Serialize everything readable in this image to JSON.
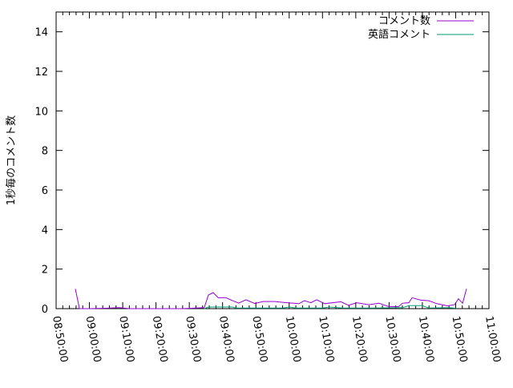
{
  "chart_data": {
    "type": "line",
    "title": "",
    "xlabel": "",
    "ylabel": "1秒毎のコメント数",
    "ylim": [
      0,
      15
    ],
    "yticks": [
      0,
      2,
      4,
      6,
      8,
      10,
      12,
      14
    ],
    "xlim": [
      "08:50:00",
      "11:00:00"
    ],
    "xticks": [
      "08:50:00",
      "09:00:00",
      "09:10:00",
      "09:20:00",
      "09:30:00",
      "09:40:00",
      "09:50:00",
      "10:00:00",
      "10:10:00",
      "10:20:00",
      "10:30:00",
      "10:40:00",
      "10:50:00",
      "11:00:00"
    ],
    "grid": false,
    "legend_position": "top-right",
    "series": [
      {
        "name": "コメント数",
        "color": "#9400d3",
        "points": [
          [
            "08:55:47",
            1.0
          ],
          [
            "08:57:00",
            0
          ],
          [
            "09:00:00",
            0
          ],
          [
            "09:05:00",
            0.02
          ],
          [
            "09:09:00",
            0.05
          ],
          [
            "09:12:00",
            0
          ],
          [
            "09:20:00",
            0
          ],
          [
            "09:28:00",
            0
          ],
          [
            "09:34:30",
            0.05
          ],
          [
            "09:35:45",
            0.69
          ],
          [
            "09:37:10",
            0.81
          ],
          [
            "09:38:40",
            0.55
          ],
          [
            "09:41:00",
            0.55
          ],
          [
            "09:43:00",
            0.4
          ],
          [
            "09:44:50",
            0.28
          ],
          [
            "09:47:00",
            0.45
          ],
          [
            "09:49:40",
            0.26
          ],
          [
            "09:52:10",
            0.36
          ],
          [
            "09:55:40",
            0.36
          ],
          [
            "09:59:20",
            0.3
          ],
          [
            "10:02:55",
            0.25
          ],
          [
            "10:04:35",
            0.4
          ],
          [
            "10:06:30",
            0.3
          ],
          [
            "10:08:15",
            0.45
          ],
          [
            "10:10:40",
            0.25
          ],
          [
            "10:15:30",
            0.35
          ],
          [
            "10:17:50",
            0.17
          ],
          [
            "10:20:15",
            0.3
          ],
          [
            "10:23:55",
            0.2
          ],
          [
            "10:27:00",
            0.27
          ],
          [
            "10:29:55",
            0.1
          ],
          [
            "10:32:50",
            0.1
          ],
          [
            "10:34:00",
            0.27
          ],
          [
            "10:35:55",
            0.3
          ],
          [
            "10:36:55",
            0.55
          ],
          [
            "10:39:30",
            0.43
          ],
          [
            "10:41:55",
            0.4
          ],
          [
            "10:44:20",
            0.25
          ],
          [
            "10:47:30",
            0.14
          ],
          [
            "10:49:40",
            0.2
          ],
          [
            "10:50:50",
            0.5
          ],
          [
            "10:52:05",
            0.27
          ],
          [
            "10:53:15",
            1.0
          ]
        ]
      },
      {
        "name": "英語コメント",
        "color": "#009e73",
        "points": [
          [
            "09:34:30",
            0
          ],
          [
            "09:35:45",
            0.08
          ],
          [
            "09:43:00",
            0.08
          ],
          [
            "09:44:00",
            0.03
          ],
          [
            "09:58:00",
            0.03
          ],
          [
            "10:00:00",
            0.08
          ],
          [
            "10:02:00",
            0.03
          ],
          [
            "10:10:00",
            0.03
          ],
          [
            "10:12:00",
            0.08
          ],
          [
            "10:16:00",
            0.03
          ],
          [
            "10:25:00",
            0.03
          ],
          [
            "10:34:00",
            0.05
          ],
          [
            "10:36:00",
            0.15
          ],
          [
            "10:40:00",
            0.15
          ],
          [
            "10:42:00",
            0.03
          ],
          [
            "10:48:00",
            0.05
          ],
          [
            "10:50:00",
            0.02
          ]
        ]
      }
    ]
  }
}
